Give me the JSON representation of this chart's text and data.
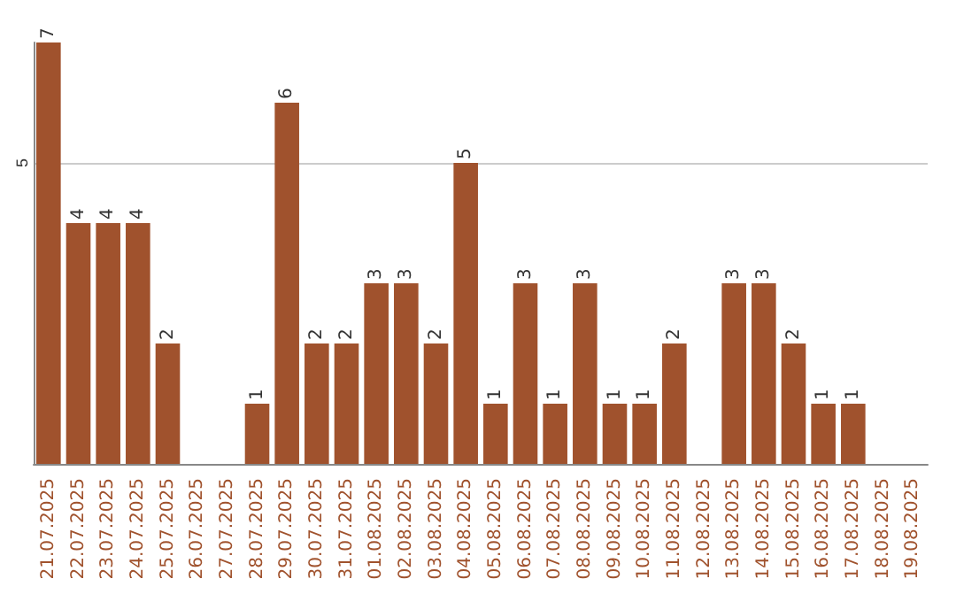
{
  "chart_data": {
    "type": "bar",
    "categories": [
      "21.07.2025",
      "22.07.2025",
      "23.07.2025",
      "24.07.2025",
      "25.07.2025",
      "26.07.2025",
      "27.07.2025",
      "28.07.2025",
      "29.07.2025",
      "30.07.2025",
      "31.07.2025",
      "01.08.2025",
      "02.08.2025",
      "03.08.2025",
      "04.08.2025",
      "05.08.2025",
      "06.08.2025",
      "07.08.2025",
      "08.08.2025",
      "09.08.2025",
      "10.08.2025",
      "11.08.2025",
      "12.08.2025",
      "13.08.2025",
      "14.08.2025",
      "15.08.2025",
      "16.08.2025",
      "17.08.2025",
      "18.08.2025",
      "19.08.2025"
    ],
    "values": [
      7,
      4,
      4,
      4,
      2,
      0,
      0,
      1,
      6,
      2,
      2,
      3,
      3,
      2,
      5,
      1,
      3,
      1,
      3,
      1,
      1,
      2,
      0,
      3,
      3,
      2,
      1,
      1,
      0,
      0
    ],
    "value_labels": [
      "7",
      "4",
      "4",
      "4",
      "2",
      null,
      null,
      "1",
      "6",
      "2",
      "2",
      "3",
      "3",
      "2",
      "5",
      "1",
      "3",
      "1",
      "3",
      "1",
      "1",
      "2",
      null,
      "3",
      "3",
      "2",
      "1",
      "1",
      null,
      null
    ],
    "color": "#a0522d",
    "ylim": [
      0,
      7
    ],
    "yticks": [
      5
    ],
    "grid": "y"
  }
}
